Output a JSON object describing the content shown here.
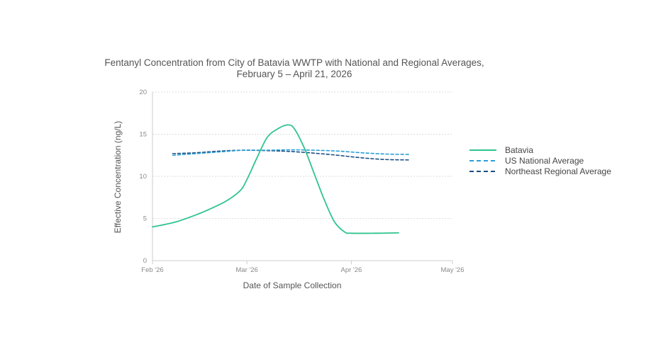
{
  "chart_data": {
    "type": "line",
    "title_line1": "Fentanyl Concentration from City of Batavia WWTP with National and Regional Averages,",
    "title_line2": "February 5 – April 21, 2026",
    "xlabel": "Date of Sample Collection",
    "ylabel": "Effective Concentration (ng/L)",
    "xlim": [
      "2026-02-01",
      "2026-05-01"
    ],
    "ylim": [
      0,
      20
    ],
    "x_ticks": [
      {
        "date": "2026-02-01",
        "label": "Feb '26"
      },
      {
        "date": "2026-03-01",
        "label": "Mar '26"
      },
      {
        "date": "2026-04-01",
        "label": "Apr '26"
      },
      {
        "date": "2026-05-01",
        "label": "May '26"
      }
    ],
    "y_ticks": [
      0,
      5,
      10,
      15,
      20
    ],
    "grid": true,
    "legend_position": "right",
    "series": [
      {
        "name": "Batavia",
        "color": "#2fc48e",
        "dash": "solid",
        "points": [
          {
            "x": "2026-02-01",
            "y": 4.0
          },
          {
            "x": "2026-02-08",
            "y": 4.6
          },
          {
            "x": "2026-02-15",
            "y": 5.6
          },
          {
            "x": "2026-02-19",
            "y": 6.3
          },
          {
            "x": "2026-02-23",
            "y": 7.1
          },
          {
            "x": "2026-02-27",
            "y": 8.3
          },
          {
            "x": "2026-03-01",
            "y": 9.6
          },
          {
            "x": "2026-03-04",
            "y": 12.2
          },
          {
            "x": "2026-03-07",
            "y": 14.6
          },
          {
            "x": "2026-03-10",
            "y": 15.6
          },
          {
            "x": "2026-03-13",
            "y": 16.1
          },
          {
            "x": "2026-03-15",
            "y": 15.7
          },
          {
            "x": "2026-03-18",
            "y": 13.4
          },
          {
            "x": "2026-03-21",
            "y": 10.3
          },
          {
            "x": "2026-03-24",
            "y": 7.2
          },
          {
            "x": "2026-03-27",
            "y": 4.6
          },
          {
            "x": "2026-03-30",
            "y": 3.4
          },
          {
            "x": "2026-04-01",
            "y": 3.25
          },
          {
            "x": "2026-04-08",
            "y": 3.25
          },
          {
            "x": "2026-04-15",
            "y": 3.3
          }
        ]
      },
      {
        "name": "US National Average",
        "color": "#2a9fd6",
        "dash": "dashed",
        "points": [
          {
            "x": "2026-02-07",
            "y": 12.5
          },
          {
            "x": "2026-02-14",
            "y": 12.7
          },
          {
            "x": "2026-02-21",
            "y": 12.9
          },
          {
            "x": "2026-02-28",
            "y": 13.1
          },
          {
            "x": "2026-03-07",
            "y": 13.1
          },
          {
            "x": "2026-03-14",
            "y": 13.15
          },
          {
            "x": "2026-03-21",
            "y": 13.1
          },
          {
            "x": "2026-03-28",
            "y": 13.0
          },
          {
            "x": "2026-04-04",
            "y": 12.8
          },
          {
            "x": "2026-04-11",
            "y": 12.65
          },
          {
            "x": "2026-04-18",
            "y": 12.6
          }
        ]
      },
      {
        "name": "Northeast Regional Average",
        "color": "#1c4f82",
        "dash": "dashed",
        "points": [
          {
            "x": "2026-02-07",
            "y": 12.7
          },
          {
            "x": "2026-02-14",
            "y": 12.8
          },
          {
            "x": "2026-02-21",
            "y": 13.0
          },
          {
            "x": "2026-02-28",
            "y": 13.1
          },
          {
            "x": "2026-03-07",
            "y": 13.05
          },
          {
            "x": "2026-03-14",
            "y": 12.95
          },
          {
            "x": "2026-03-21",
            "y": 12.75
          },
          {
            "x": "2026-03-28",
            "y": 12.5
          },
          {
            "x": "2026-04-04",
            "y": 12.2
          },
          {
            "x": "2026-04-11",
            "y": 12.0
          },
          {
            "x": "2026-04-18",
            "y": 11.95
          }
        ]
      }
    ]
  }
}
